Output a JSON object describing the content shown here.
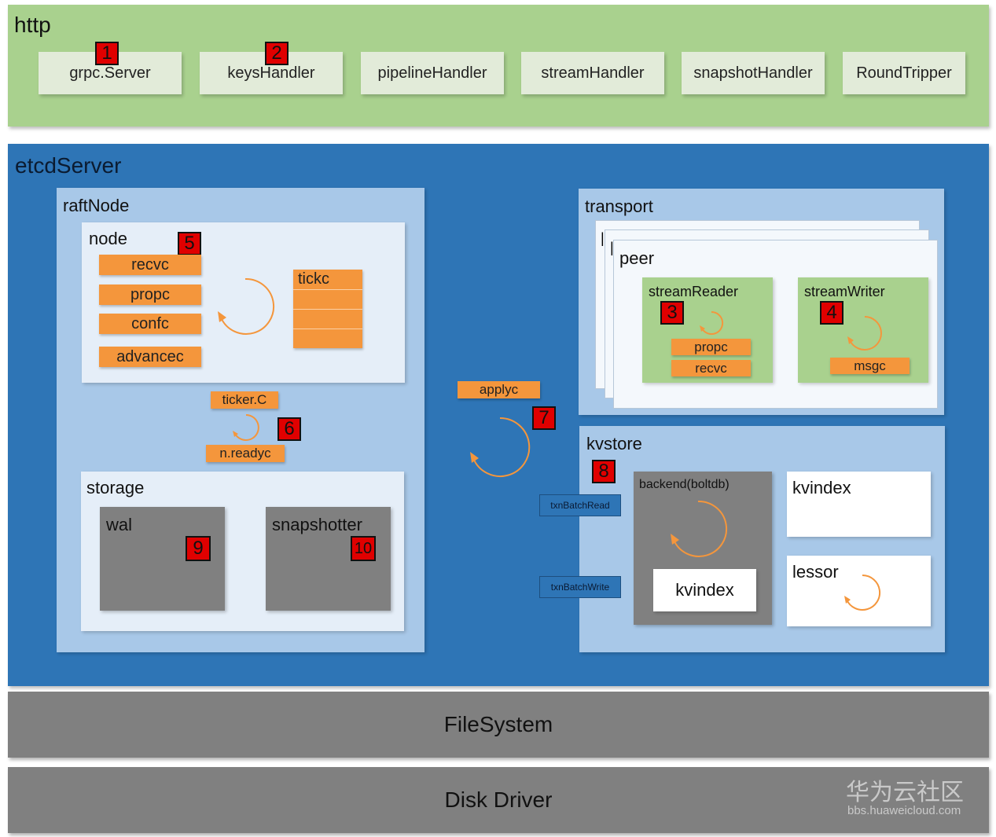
{
  "http": {
    "title": "http",
    "handlers": [
      {
        "label": "grpc.Server",
        "badge": "1"
      },
      {
        "label": "keysHandler",
        "badge": "2"
      },
      {
        "label": "pipelineHandler"
      },
      {
        "label": "streamHandler"
      },
      {
        "label": "snapshotHandler"
      },
      {
        "label": "RoundTripper"
      }
    ]
  },
  "etcd_server": {
    "title": "etcdServer",
    "raft_node": {
      "title": "raftNode",
      "node": {
        "title": "node",
        "badge": "5",
        "channels": [
          "recvc",
          "propc",
          "confc",
          "advancec"
        ],
        "tickc": "tickc"
      },
      "ticker": {
        "top": "ticker.C",
        "bottom": "n.readyc",
        "badge": "6"
      },
      "storage": {
        "title": "storage",
        "wal": {
          "label": "wal",
          "badge": "9"
        },
        "snapshotter": {
          "label": "snapshotter",
          "badge": "10"
        }
      }
    },
    "apply": {
      "label": "applyc",
      "badge": "7"
    },
    "transport": {
      "title": "transport",
      "peer": {
        "title": "peer",
        "stack_marks": [
          "|",
          "|"
        ],
        "stream_reader": {
          "title": "streamReader",
          "badge": "3",
          "channels": [
            "propc",
            "recvc"
          ]
        },
        "stream_writer": {
          "title": "streamWriter",
          "badge": "4",
          "channels": [
            "msgc"
          ]
        }
      }
    },
    "kvstore": {
      "title": "kvstore",
      "badge": "8",
      "txn_read": "txnBatchRead",
      "txn_write": "txnBatchWrite",
      "backend": {
        "title": "backend(boltdb)",
        "inner": "kvindex"
      },
      "kvindex": "kvindex",
      "lessor": "lessor"
    }
  },
  "filesystem": "FileSystem",
  "disk_driver": "Disk Driver",
  "watermark": {
    "main": "华为云社区",
    "url": "bbs.huaweicloud.com"
  },
  "colors": {
    "http_bg": "#a9d18e",
    "server_bg": "#2e75b6",
    "panel_bg": "#a8c8e8",
    "channel": "#f4963c",
    "badge": "#e00000",
    "grey_layer": "#808080"
  }
}
